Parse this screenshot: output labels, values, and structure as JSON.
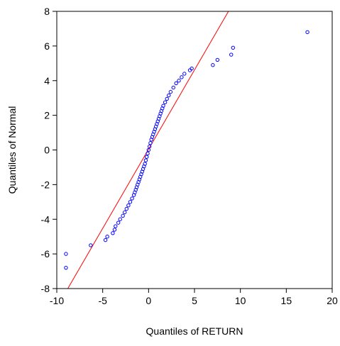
{
  "chart_data": {
    "type": "scatter",
    "title": "",
    "xlabel": "Quantiles of RETURN",
    "ylabel": "Quantiles of Normal",
    "xlim": [
      -10,
      20
    ],
    "ylim": [
      -8,
      8
    ],
    "x_ticks": [
      -10,
      -5,
      0,
      5,
      10,
      15,
      20
    ],
    "y_ticks": [
      -8,
      -6,
      -4,
      -2,
      0,
      2,
      4,
      6,
      8
    ],
    "grid": false,
    "legend": "none",
    "colors": {
      "points": "#0000ff",
      "reference_line": "#ff0000",
      "axes": "#000000"
    },
    "reference_line": {
      "x": [
        -8.8,
        8.7
      ],
      "y": [
        -8,
        8
      ]
    },
    "series": [
      {
        "marker": "open-circle",
        "x": [
          -9.0,
          -9.0,
          -6.3,
          -4.7,
          -4.5,
          -3.9,
          -3.7,
          -3.6,
          -3.3,
          -3.1,
          -2.8,
          -2.6,
          -2.4,
          -2.2,
          -2.0,
          -1.8,
          -1.6,
          -1.5,
          -1.4,
          -1.3,
          -1.2,
          -1.1,
          -1.0,
          -0.9,
          -0.8,
          -0.7,
          -0.6,
          -0.5,
          -0.4,
          -0.3,
          -0.2,
          -0.1,
          0.0,
          0.1,
          0.2,
          0.3,
          0.4,
          0.5,
          0.6,
          0.7,
          0.8,
          0.9,
          1.0,
          1.1,
          1.2,
          1.3,
          1.4,
          1.5,
          1.6,
          1.8,
          2.0,
          2.2,
          2.4,
          2.7,
          3.0,
          3.3,
          3.6,
          3.9,
          4.5,
          4.7,
          7.0,
          7.5,
          9.0,
          9.2,
          17.3
        ],
        "y": [
          -6.8,
          -6.0,
          -5.5,
          -5.2,
          -5.0,
          -4.8,
          -4.6,
          -4.4,
          -4.2,
          -4.0,
          -3.8,
          -3.6,
          -3.4,
          -3.2,
          -3.0,
          -2.8,
          -2.6,
          -2.45,
          -2.3,
          -2.15,
          -2.0,
          -1.85,
          -1.7,
          -1.55,
          -1.4,
          -1.25,
          -1.1,
          -0.95,
          -0.8,
          -0.6,
          -0.4,
          -0.2,
          0.0,
          0.2,
          0.4,
          0.6,
          0.75,
          0.9,
          1.05,
          1.2,
          1.35,
          1.5,
          1.65,
          1.8,
          1.95,
          2.1,
          2.25,
          2.4,
          2.55,
          2.75,
          2.95,
          3.15,
          3.35,
          3.6,
          3.85,
          4.0,
          4.2,
          4.4,
          4.6,
          4.7,
          4.9,
          5.2,
          5.5,
          5.9,
          6.8
        ]
      }
    ]
  }
}
